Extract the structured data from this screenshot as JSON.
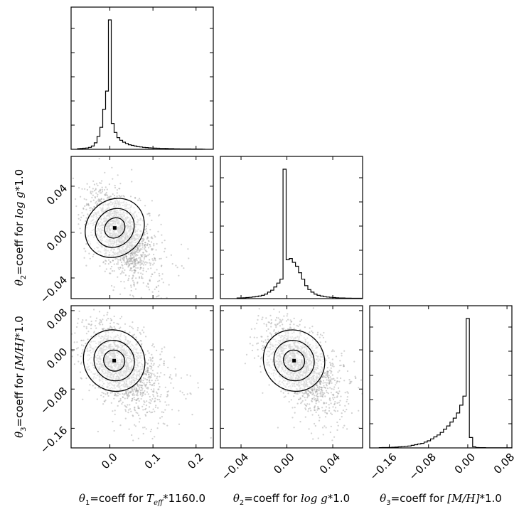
{
  "chart_data": {
    "type": "corner",
    "parameters": [
      {
        "symbol": "θ",
        "index": "1",
        "label_mid": "=coeff for",
        "feature": "T",
        "feature_sub": "eff",
        "suffix": "*1160.0",
        "range": [
          -0.09,
          0.24
        ],
        "ticks": [
          {
            "v": 0.0,
            "t": "0.0"
          },
          {
            "v": 0.1,
            "t": "0.1"
          },
          {
            "v": 0.2,
            "t": "0.2"
          }
        ]
      },
      {
        "symbol": "θ",
        "index": "2",
        "label_mid": "=coeff for",
        "feature": "log g",
        "feature_sub": "",
        "suffix": "*1.0",
        "range": [
          -0.058,
          0.066
        ],
        "ticks": [
          {
            "v": -0.04,
            "t": "−0.04"
          },
          {
            "v": 0.0,
            "t": "0.00"
          },
          {
            "v": 0.04,
            "t": "0.04"
          }
        ]
      },
      {
        "symbol": "θ",
        "index": "3",
        "label_mid": "=coeff for",
        "feature": "[M/H]",
        "feature_sub": "",
        "suffix": "*1.0",
        "range": [
          -0.2,
          0.09
        ],
        "ticks": [
          {
            "v": -0.16,
            "t": "−0.16"
          },
          {
            "v": -0.08,
            "t": "−0.08"
          },
          {
            "v": 0.0,
            "t": "0.00"
          },
          {
            "v": 0.08,
            "t": "0.08"
          }
        ]
      }
    ],
    "histograms": [
      {
        "param": 1,
        "bin_width": 0.0066,
        "counts": [
          0.5,
          0.6,
          0.8,
          1.0,
          1.5,
          2.5,
          5.0,
          10,
          17,
          31,
          45,
          100,
          20,
          13,
          9,
          7,
          5.5,
          4.5,
          3.5,
          3,
          2.5,
          2,
          1.8,
          1.5,
          1.3,
          1.1,
          1.0,
          0.9,
          0.8,
          0.7,
          0.7,
          0.6,
          0.5,
          0.5,
          0.4,
          0.4,
          0.3,
          0.3,
          0.3,
          0.3,
          0.2,
          0.2,
          0.2,
          0.2,
          0.1
        ]
      },
      {
        "param": 2,
        "bin_width": 0.0027,
        "counts": [
          0.5,
          0.5,
          0.6,
          0.8,
          1,
          1.3,
          1.6,
          2,
          2.5,
          3.5,
          5,
          6.5,
          9,
          12,
          15,
          100,
          30,
          31,
          28,
          25,
          20,
          15,
          10,
          7,
          5,
          3.5,
          2.5,
          2,
          1.5,
          1.2,
          1,
          0.8,
          0.6,
          0.5,
          0.5,
          0.4,
          0.4,
          0.3,
          0.3,
          0.3,
          0.3,
          0.3,
          0.3,
          0.3,
          0.3
        ]
      },
      {
        "param": 3,
        "bin_width": 0.0066,
        "counts": [
          0.2,
          0.3,
          0.3,
          0.4,
          0.5,
          0.6,
          0.8,
          1,
          1.2,
          1.5,
          2,
          2.5,
          3,
          3.5,
          4.5,
          5.5,
          7,
          8.5,
          10,
          12,
          14.5,
          17,
          20,
          23,
          27,
          33,
          40,
          100,
          8,
          0.8,
          0.3,
          0.2,
          0.2,
          0.1,
          0.1,
          0.1,
          0.1,
          0.1,
          0.1,
          0.1,
          0.1,
          0.1,
          0.1,
          0.1
        ]
      }
    ],
    "pairs": [
      {
        "x_param": 1,
        "y_param": 2,
        "mean": [
          0.02,
          0.0
        ],
        "sd": [
          0.035,
          0.018
        ],
        "rho": -0.45,
        "n_points": 1800
      },
      {
        "x_param": 1,
        "y_param": 3,
        "mean": [
          0.02,
          -0.03
        ],
        "sd": [
          0.04,
          0.04
        ],
        "rho": -0.4,
        "n_points": 1800
      },
      {
        "x_param": 2,
        "y_param": 3,
        "mean": [
          0.01,
          -0.03
        ],
        "sd": [
          0.015,
          0.04
        ],
        "rho": -0.5,
        "n_points": 1800
      }
    ],
    "contour_levels": 3
  }
}
